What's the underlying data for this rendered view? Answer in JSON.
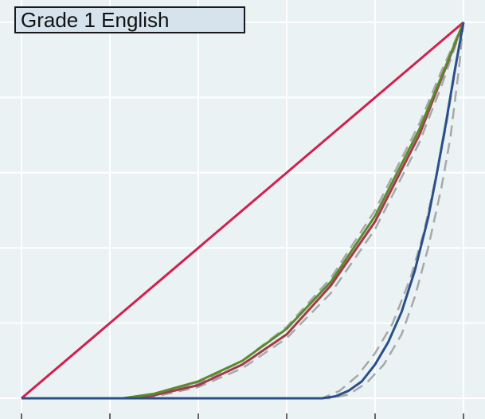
{
  "chart_data": {
    "type": "line",
    "title": "Grade 1 English",
    "xlabel": "",
    "ylabel": "",
    "xlim": [
      0,
      1
    ],
    "ylim": [
      0,
      1
    ],
    "grid": true,
    "series": [
      {
        "color": "#d1204f",
        "style": "solid",
        "points": [
          [
            0,
            0
          ],
          [
            1,
            1
          ]
        ]
      },
      {
        "color": "#a8a8a8",
        "style": "dashed",
        "points": [
          [
            0,
            0
          ],
          [
            0.22,
            0
          ],
          [
            0.3,
            0.01
          ],
          [
            0.4,
            0.04
          ],
          [
            0.5,
            0.1
          ],
          [
            0.6,
            0.19
          ],
          [
            0.7,
            0.32
          ],
          [
            0.8,
            0.5
          ],
          [
            0.9,
            0.73
          ],
          [
            0.95,
            0.87
          ],
          [
            1,
            1
          ]
        ]
      },
      {
        "color": "#a8a8a8",
        "style": "dashed",
        "points": [
          [
            0,
            0
          ],
          [
            0.24,
            0
          ],
          [
            0.3,
            0.004
          ],
          [
            0.4,
            0.03
          ],
          [
            0.5,
            0.08
          ],
          [
            0.6,
            0.16
          ],
          [
            0.7,
            0.28
          ],
          [
            0.8,
            0.45
          ],
          [
            0.9,
            0.68
          ],
          [
            0.95,
            0.83
          ],
          [
            1,
            1
          ]
        ]
      },
      {
        "color": "#a8a8a8",
        "style": "dashed",
        "points": [
          [
            0,
            0
          ],
          [
            0.68,
            0
          ],
          [
            0.72,
            0.02
          ],
          [
            0.76,
            0.06
          ],
          [
            0.8,
            0.12
          ],
          [
            0.84,
            0.2
          ],
          [
            0.88,
            0.32
          ],
          [
            0.91,
            0.44
          ],
          [
            0.94,
            0.6
          ],
          [
            0.96,
            0.72
          ],
          [
            0.985,
            0.9
          ],
          [
            1,
            1
          ]
        ]
      },
      {
        "color": "#a8a8a8",
        "style": "dashed",
        "points": [
          [
            0,
            0
          ],
          [
            0.7,
            0
          ],
          [
            0.74,
            0.01
          ],
          [
            0.78,
            0.04
          ],
          [
            0.82,
            0.09
          ],
          [
            0.86,
            0.17
          ],
          [
            0.89,
            0.27
          ],
          [
            0.92,
            0.4
          ],
          [
            0.95,
            0.56
          ],
          [
            0.97,
            0.69
          ],
          [
            0.99,
            0.88
          ],
          [
            1,
            1
          ]
        ]
      },
      {
        "color": "#a33a4a",
        "style": "solid",
        "points": [
          [
            0,
            0
          ],
          [
            0.23,
            0
          ],
          [
            0.3,
            0.008
          ],
          [
            0.4,
            0.035
          ],
          [
            0.5,
            0.09
          ],
          [
            0.6,
            0.17
          ],
          [
            0.7,
            0.3
          ],
          [
            0.8,
            0.47
          ],
          [
            0.9,
            0.7
          ],
          [
            0.95,
            0.85
          ],
          [
            1,
            1
          ]
        ]
      },
      {
        "color": "#5a8a2e",
        "style": "solid",
        "points": [
          [
            0,
            0
          ],
          [
            0.23,
            0
          ],
          [
            0.3,
            0.012
          ],
          [
            0.4,
            0.045
          ],
          [
            0.5,
            0.1
          ],
          [
            0.6,
            0.185
          ],
          [
            0.7,
            0.31
          ],
          [
            0.8,
            0.485
          ],
          [
            0.9,
            0.715
          ],
          [
            0.95,
            0.855
          ],
          [
            1,
            1
          ]
        ]
      },
      {
        "color": "#2a4f8a",
        "style": "solid",
        "points": [
          [
            0,
            0
          ],
          [
            0.68,
            0
          ],
          [
            0.71,
            0.005
          ],
          [
            0.74,
            0.02
          ],
          [
            0.77,
            0.045
          ],
          [
            0.8,
            0.09
          ],
          [
            0.83,
            0.15
          ],
          [
            0.86,
            0.23
          ],
          [
            0.89,
            0.34
          ],
          [
            0.92,
            0.48
          ],
          [
            0.94,
            0.6
          ],
          [
            0.96,
            0.73
          ],
          [
            0.98,
            0.87
          ],
          [
            1,
            1
          ]
        ]
      }
    ]
  }
}
